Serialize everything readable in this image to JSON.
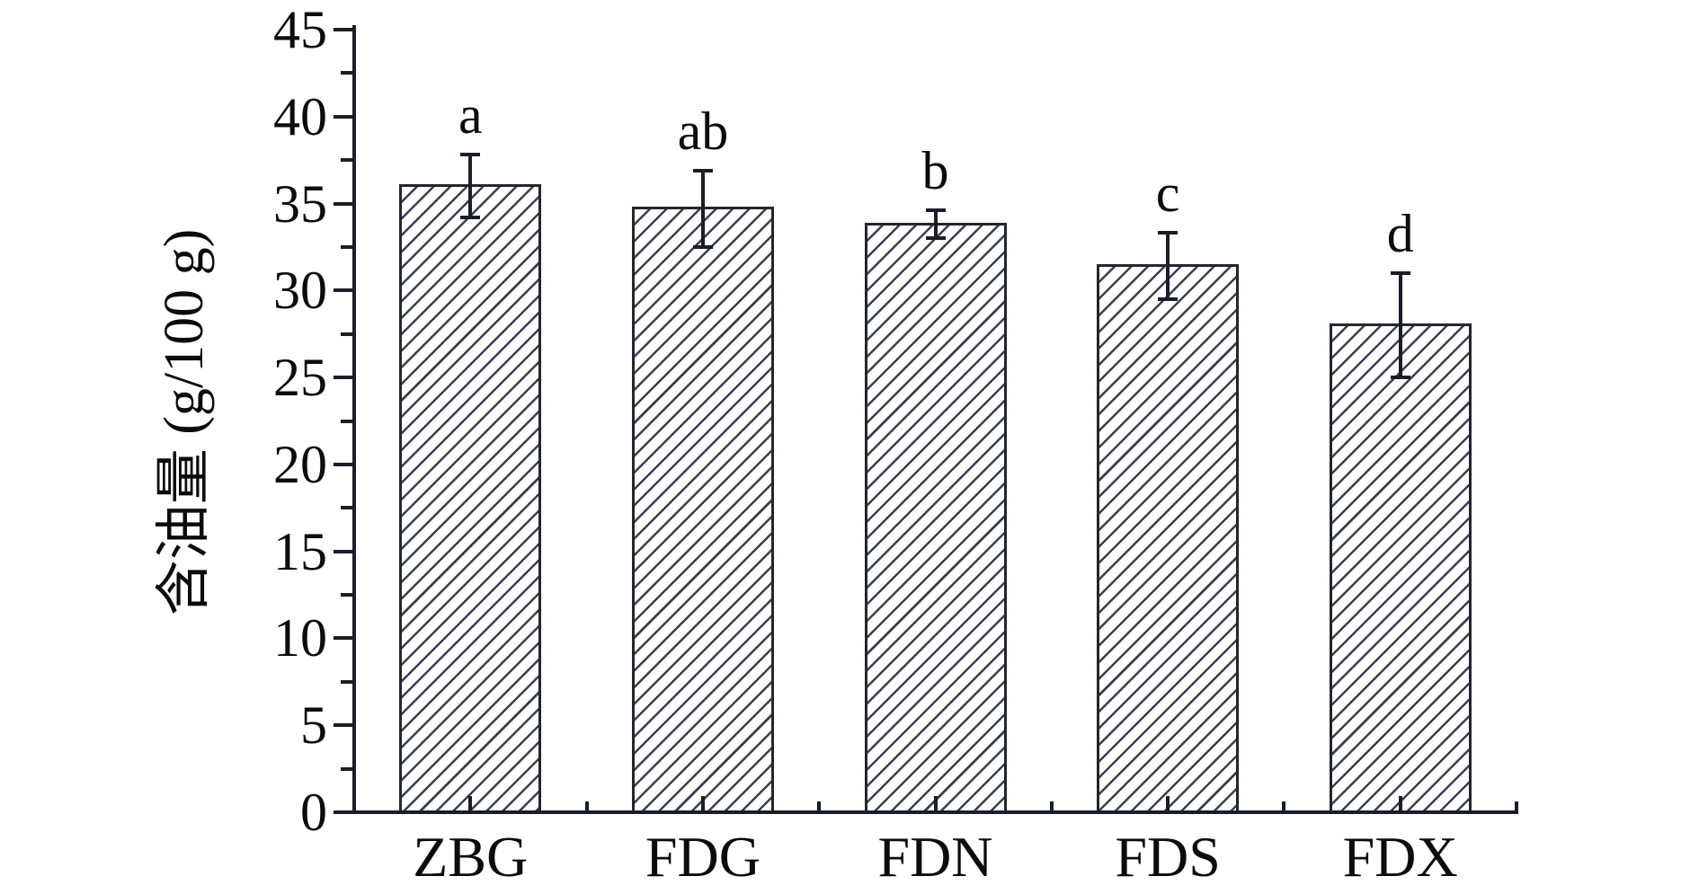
{
  "figure": {
    "background": "#ffffff",
    "axis_color": "#1b1e28",
    "text_color": "#0c0c0c"
  },
  "chart_data": {
    "type": "bar",
    "title": "",
    "xlabel": "",
    "ylabel": "含油量 (g/100 g)",
    "categories": [
      "ZBG",
      "FDG",
      "FDN",
      "FDS",
      "FDX"
    ],
    "values": [
      36.0,
      34.7,
      33.8,
      31.4,
      28.0
    ],
    "errors": [
      1.8,
      2.2,
      0.8,
      1.9,
      3.0
    ],
    "sig_letters": [
      "a",
      "ab",
      "b",
      "c",
      "d"
    ],
    "ylim": [
      0,
      45
    ],
    "ytick_step": 5,
    "yminor_step": 2.5,
    "ytick_labels": [
      "0",
      "5",
      "10",
      "15",
      "20",
      "25",
      "30",
      "35",
      "40",
      "45"
    ],
    "grid": false,
    "legend": null,
    "bar_fill": "#ffffff",
    "hatch": "diagonal-forward",
    "hatch_color": "#3a3f4e",
    "bar_border_color": "#23262f",
    "error_bar_color": "#1b1e28"
  }
}
